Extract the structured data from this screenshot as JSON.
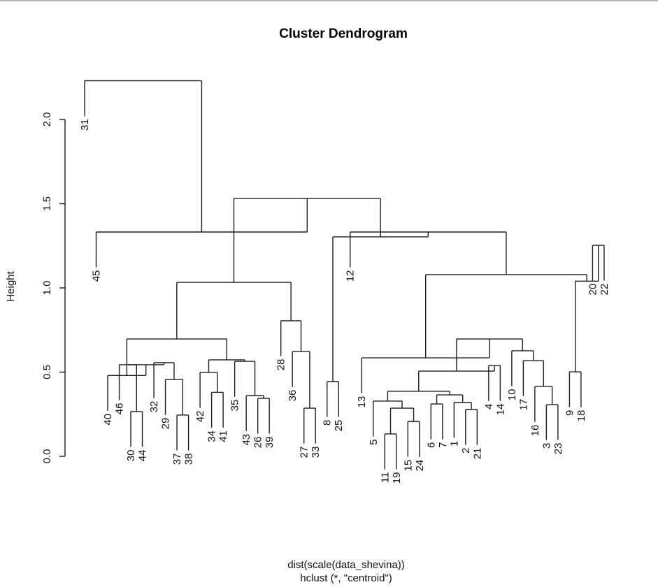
{
  "chart_data": {
    "type": "dendrogram",
    "title": "Cluster Dendrogram",
    "ylabel": "Height",
    "xlabel": "dist(scale(data_shevina))",
    "sub": "hclust (*, \"centroid\")",
    "ylim": [
      0,
      2.25
    ],
    "yticks": [
      0.0,
      0.5,
      1.0,
      1.5,
      2.0
    ],
    "ytick_labels": [
      "0.0",
      "0.5",
      "1.0",
      "1.5",
      "2.0"
    ],
    "hang": 0.21,
    "leaf_order": [
      "31",
      "45",
      "40",
      "46",
      "30",
      "44",
      "32",
      "29",
      "37",
      "38",
      "42",
      "34",
      "41",
      "35",
      "43",
      "26",
      "39",
      "28",
      "36",
      "27",
      "33",
      "8",
      "25",
      "12",
      "13",
      "5",
      "11",
      "19",
      "15",
      "24",
      "6",
      "7",
      "1",
      "2",
      "21",
      "4",
      "14",
      "10",
      "17",
      "16",
      "3",
      "23",
      "9",
      "18",
      "20",
      "22"
    ],
    "merges": [
      {
        "id": "A",
        "left": "30",
        "right": "44",
        "height": 0.266
      },
      {
        "id": "D",
        "left": "37",
        "right": "38",
        "height": 0.245
      },
      {
        "id": "C",
        "left": "29",
        "right": "D",
        "height": 0.456
      },
      {
        "id": "E",
        "left": "32",
        "right": "C",
        "height": 0.556
      },
      {
        "id": "G",
        "left": "46",
        "right": "A",
        "height": 0.544
      },
      {
        "id": "H",
        "left": "G",
        "right": "E",
        "height": 0.544
      },
      {
        "id": "I",
        "left": "40",
        "right": "H",
        "height": 0.48
      },
      {
        "id": "M",
        "left": "34",
        "right": "41",
        "height": 0.38
      },
      {
        "id": "L",
        "left": "42",
        "right": "M",
        "height": 0.498
      },
      {
        "id": "P",
        "left": "26",
        "right": "39",
        "height": 0.344
      },
      {
        "id": "O",
        "left": "43",
        "right": "P",
        "height": 0.36
      },
      {
        "id": "N",
        "left": "35",
        "right": "O",
        "height": 0.564
      },
      {
        "id": "K",
        "left": "L",
        "right": "N",
        "height": 0.573
      },
      {
        "id": "J",
        "left": "I",
        "right": "K",
        "height": 0.697
      },
      {
        "id": "S",
        "left": "27",
        "right": "33",
        "height": 0.286
      },
      {
        "id": "R",
        "left": "36",
        "right": "S",
        "height": 0.622
      },
      {
        "id": "Q",
        "left": "28",
        "right": "R",
        "height": 0.805
      },
      {
        "id": "T",
        "left": "J",
        "right": "Q",
        "height": 1.033
      },
      {
        "id": "Y1",
        "left": "8",
        "right": "25",
        "height": 0.444
      },
      {
        "id": "AN",
        "left": "11",
        "right": "19",
        "height": 0.133
      },
      {
        "id": "AO",
        "left": "15",
        "right": "24",
        "height": 0.207
      },
      {
        "id": "AM",
        "left": "AN",
        "right": "AO",
        "height": 0.286
      },
      {
        "id": "AK",
        "left": "5",
        "right": "AM",
        "height": 0.328
      },
      {
        "id": "AP",
        "left": "6",
        "right": "7",
        "height": 0.311
      },
      {
        "id": "AR",
        "left": "2",
        "right": "21",
        "height": 0.278
      },
      {
        "id": "AQ",
        "left": "1",
        "right": "AR",
        "height": 0.32
      },
      {
        "id": "AL",
        "left": "AP",
        "right": "AQ",
        "height": 0.365
      },
      {
        "id": "AI",
        "left": "AK",
        "right": "AL",
        "height": 0.386
      },
      {
        "id": "AJ",
        "left": "4",
        "right": "14",
        "height": 0.539
      },
      {
        "id": "AG",
        "left": "AI",
        "right": "AJ",
        "height": 0.506
      },
      {
        "id": "AU",
        "left": "3",
        "right": "23",
        "height": 0.307
      },
      {
        "id": "AT",
        "left": "16",
        "right": "AU",
        "height": 0.415
      },
      {
        "id": "AS",
        "left": "17",
        "right": "AT",
        "height": 0.568
      },
      {
        "id": "AH",
        "left": "10",
        "right": "AS",
        "height": 0.627
      },
      {
        "id": "AF",
        "left": "AG",
        "right": "AH",
        "height": 0.697
      },
      {
        "id": "AB",
        "left": "13",
        "right": "AF",
        "height": 0.585
      },
      {
        "id": "AE",
        "left": "9",
        "right": "18",
        "height": 0.502
      },
      {
        "id": "AD",
        "left": "20",
        "right": "22",
        "height": 1.253
      },
      {
        "id": "AC",
        "left": "AE",
        "right": "AD",
        "height": 1.04
      },
      {
        "id": "AA",
        "left": "AB",
        "right": "AC",
        "height": 1.079
      },
      {
        "id": "Z",
        "left": "12",
        "right": "AA",
        "height": 1.332
      },
      {
        "id": "X",
        "left": "Y1",
        "right": "Z",
        "height": 1.303
      },
      {
        "id": "U",
        "left": "T",
        "right": "X",
        "height": 1.531
      },
      {
        "id": "V",
        "left": "45",
        "right": "U",
        "height": 1.332
      },
      {
        "id": "ROOT",
        "left": "31",
        "right": "V",
        "height": 2.23
      }
    ]
  }
}
